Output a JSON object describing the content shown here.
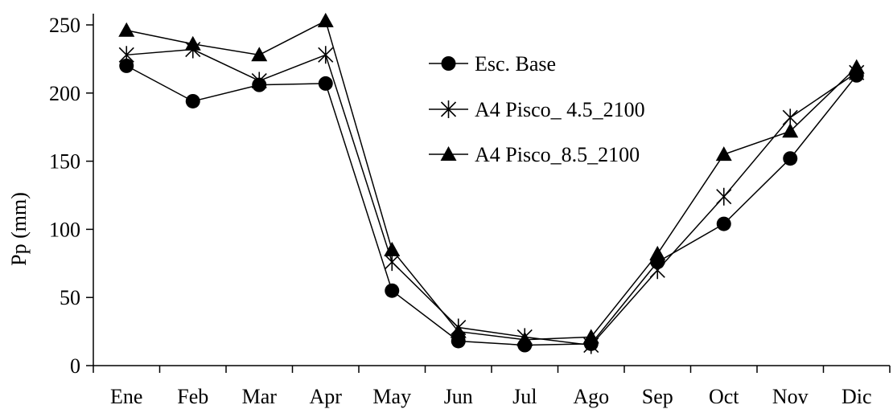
{
  "chart_data": {
    "type": "line",
    "title": "",
    "xlabel": "",
    "ylabel": "Pp (mm)",
    "categories": [
      "Ene",
      "Feb",
      "Mar",
      "Apr",
      "May",
      "Jun",
      "Jul",
      "Ago",
      "Sep",
      "Oct",
      "Nov",
      "Dic"
    ],
    "ylim": [
      0,
      250
    ],
    "yticks": [
      0,
      50,
      100,
      150,
      200,
      250
    ],
    "grid": false,
    "legend_position": "inside-top-center",
    "series": [
      {
        "name": "Esc. Base",
        "marker": "circle",
        "values": [
          220,
          194,
          206,
          207,
          55,
          18,
          15,
          16,
          76,
          104,
          152,
          213
        ]
      },
      {
        "name": "A4 Pisco_ 4.5_2100",
        "marker": "asterisk",
        "values": [
          228,
          232,
          209,
          228,
          76,
          28,
          21,
          15,
          70,
          124,
          182,
          215
        ]
      },
      {
        "name": "A4 Pisco_8.5_2100",
        "marker": "triangle",
        "values": [
          246,
          236,
          228,
          253,
          85,
          25,
          19,
          21,
          82,
          155,
          172,
          219
        ]
      }
    ]
  }
}
